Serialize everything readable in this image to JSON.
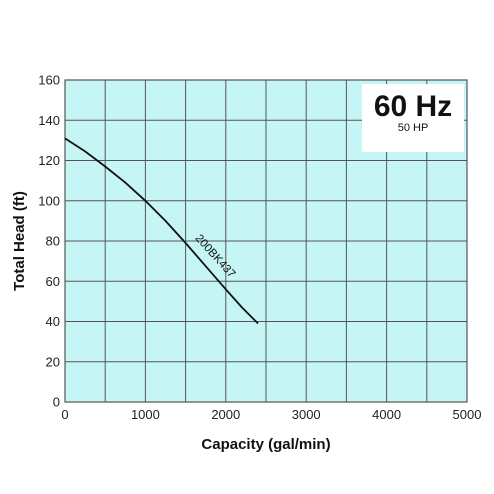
{
  "chart_data": {
    "type": "line",
    "title": "",
    "xlabel": "Capacity (gal/min)",
    "ylabel": "Total Head (ft)",
    "xlim": [
      0,
      5000
    ],
    "ylim": [
      0,
      160
    ],
    "x_ticks": [
      "0",
      "1000",
      "2000",
      "3000",
      "4000",
      "5000"
    ],
    "y_ticks": [
      "0",
      "20",
      "40",
      "60",
      "80",
      "100",
      "120",
      "140",
      "160"
    ],
    "grid": true,
    "frequency_label": "60 Hz",
    "power_label": "50 HP",
    "colors": {
      "plot_background": "#c6f5f6",
      "grid": "#555555",
      "curve": "#111111"
    },
    "series": [
      {
        "name": "200BK437",
        "x": [
          0,
          250,
          500,
          750,
          1000,
          1250,
          1500,
          1750,
          2000,
          2200,
          2400
        ],
        "y": [
          131,
          124.5,
          117,
          109,
          100,
          90,
          79,
          67.5,
          56,
          47,
          39
        ]
      }
    ]
  }
}
